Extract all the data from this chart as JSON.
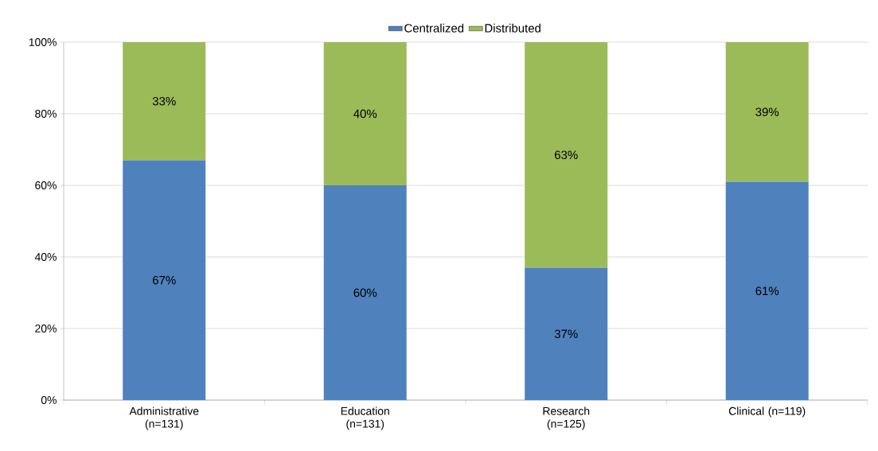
{
  "chart_data": {
    "type": "bar",
    "stacked": true,
    "categories": [
      "Administrative (n=131)",
      "Education (n=131)",
      "Research (n=125)",
      "Clinical (n=119)"
    ],
    "series": [
      {
        "name": "Centralized",
        "color": "#4f81bd",
        "values": [
          67,
          60,
          37,
          61
        ],
        "value_labels": [
          "67%",
          "60%",
          "37%",
          "61%"
        ]
      },
      {
        "name": "Distributed",
        "color": "#9bbb59",
        "values": [
          33,
          40,
          63,
          39
        ],
        "value_labels": [
          "33%",
          "40%",
          "63%",
          "39%"
        ]
      }
    ],
    "ylim": [
      0,
      100
    ],
    "yticks": [
      {
        "value": 0,
        "label": "0%"
      },
      {
        "value": 20,
        "label": "20%"
      },
      {
        "value": 40,
        "label": "40%"
      },
      {
        "value": 60,
        "label": "60%"
      },
      {
        "value": 80,
        "label": "80%"
      },
      {
        "value": 100,
        "label": "100%"
      }
    ],
    "grid": "y",
    "legend": "top"
  }
}
